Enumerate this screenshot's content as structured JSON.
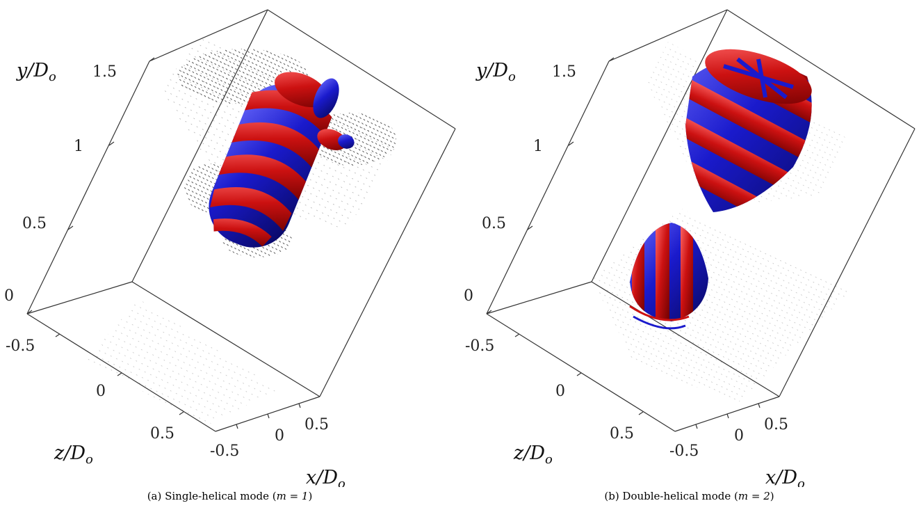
{
  "panels": [
    {
      "id": "a",
      "caption_prefix": "(a) Single-helical mode (",
      "caption_math": "m = 1",
      "caption_suffix": ")",
      "axes": {
        "y_label": "y/D",
        "y_label_sub": "o",
        "z_label": "z/D",
        "z_label_sub": "o",
        "x_label": "x/D",
        "x_label_sub": "o",
        "y_ticks": [
          "0",
          "0.5",
          "1",
          "1.5"
        ],
        "z_ticks": [
          "-0.5",
          "0",
          "0.5"
        ],
        "x_ticks": [
          "-0.5",
          "0",
          "0.5"
        ]
      }
    },
    {
      "id": "b",
      "caption_prefix": "(b) Double-helical mode (",
      "caption_math": "m = 2",
      "caption_suffix": ")",
      "axes": {
        "y_label": "y/D",
        "y_label_sub": "o",
        "z_label": "z/D",
        "z_label_sub": "o",
        "x_label": "x/D",
        "x_label_sub": "o",
        "y_ticks": [
          "0",
          "0.5",
          "1",
          "1.5"
        ],
        "z_ticks": [
          "-0.5",
          "0",
          "0.5"
        ],
        "x_ticks": [
          "-0.5",
          "0",
          "0.5"
        ]
      }
    }
  ],
  "colors": {
    "positive": "#cc1111",
    "negative": "#1a1acc",
    "vectors": "#000000",
    "box": "#333333"
  }
}
